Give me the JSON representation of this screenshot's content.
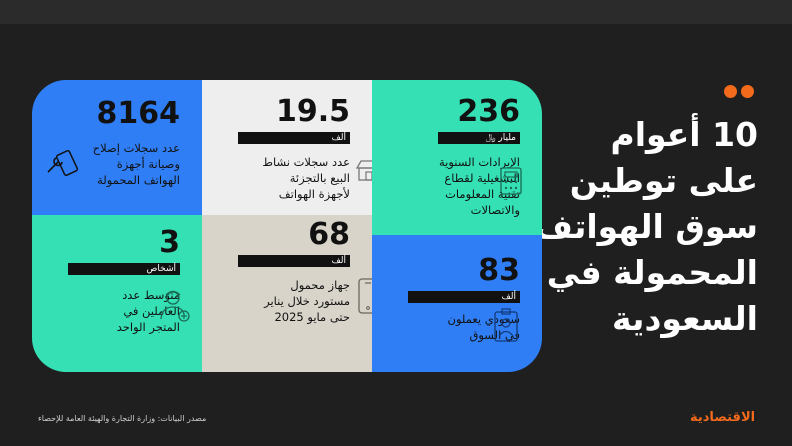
{
  "headline": [
    "10 أعوام",
    "على توطين",
    "سوق الهواتف",
    "المحمولة في",
    "السعودية"
  ],
  "cells": {
    "repairs": {
      "value": "8164",
      "desc": [
        "عدد سجلات إصلاح",
        "وصيانة أجهزة",
        "الهواتف المحمولة"
      ]
    },
    "retail": {
      "value": "19.5",
      "unit": "ألف",
      "desc": [
        "عدد سجلات نشاط",
        "البيع بالتجزئة",
        "لأجهزة الهواتف"
      ]
    },
    "revenue": {
      "value": "236",
      "unit": "مليار ﷼",
      "desc": [
        "الإيرادات السنوية",
        "التشغيلية لقطاع",
        "تقنية المعلومات",
        "والاتصالات"
      ]
    },
    "workers": {
      "value": "3",
      "unit": "أشخاص",
      "desc": [
        "متوسط عدد",
        "العاملين في",
        "المتجر الواحد"
      ]
    },
    "imports": {
      "value": "68",
      "unit": "ألف",
      "desc": [
        "جهاز محمول",
        "مستورد خلال يناير",
        "حتى مايو 2025"
      ]
    },
    "saudis": {
      "value": "83",
      "unit": "ألف",
      "desc": [
        "سعودي يعملون",
        "في السوق"
      ]
    }
  },
  "source": "مصدر البيانات: وزارة التجارة والهيئة العامة للإحصاء",
  "brand": "الاقتصادية",
  "colors": {
    "accent": "#f26a1b",
    "blue": "#2f7ef5",
    "mint": "#34e0b4",
    "light": "#eeeeee",
    "beige": "#d8d4ca",
    "background": "#1f1f1f"
  },
  "icons": [
    "wrench-phone-icon",
    "shop-icon",
    "calculator-icon",
    "worker-icon",
    "smartphone-icon",
    "id-badge-icon"
  ]
}
